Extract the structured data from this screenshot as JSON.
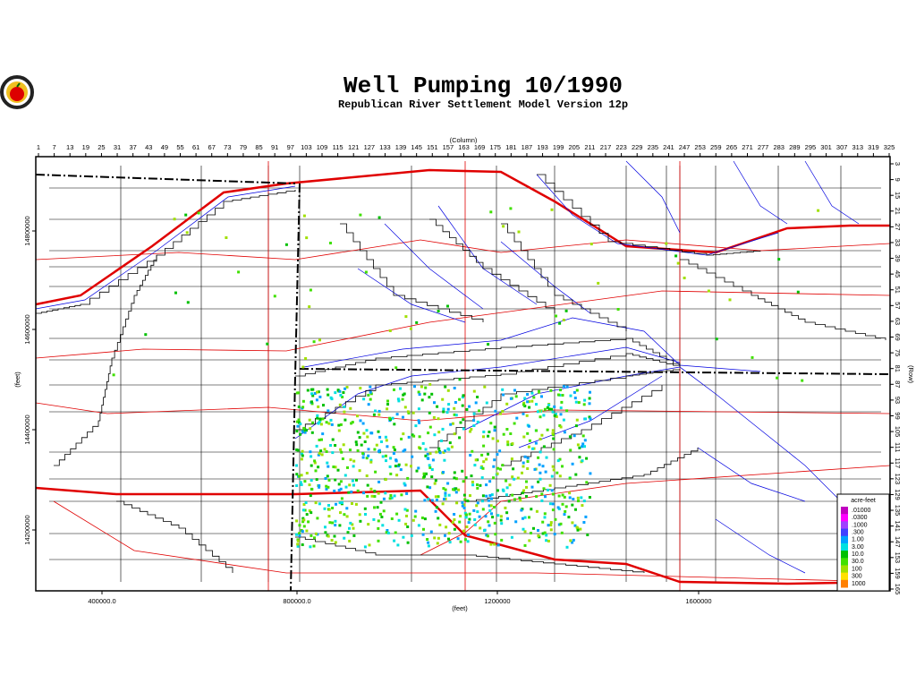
{
  "title": "Well Pumping 10/1990",
  "subtitle": "Republican River Settlement Model Version 12p",
  "column_axis": {
    "label": "(Column)",
    "ticks": [
      "1",
      "7",
      "13",
      "19",
      "25",
      "31",
      "37",
      "43",
      "49",
      "55",
      "61",
      "67",
      "73",
      "79",
      "85",
      "91",
      "97",
      "103",
      "109",
      "115",
      "121",
      "127",
      "133",
      "139",
      "145",
      "151",
      "157",
      "163",
      "169",
      "175",
      "181",
      "187",
      "193",
      "199",
      "205",
      "211",
      "217",
      "223",
      "229",
      "235",
      "241",
      "247",
      "253",
      "259",
      "265",
      "271",
      "277",
      "283",
      "289",
      "295",
      "301",
      "307",
      "313",
      "319",
      "325"
    ]
  },
  "row_axis": {
    "label": "(Row)",
    "ticks": [
      "3",
      "9",
      "15",
      "21",
      "27",
      "33",
      "39",
      "45",
      "51",
      "57",
      "63",
      "69",
      "75",
      "81",
      "87",
      "93",
      "99",
      "105",
      "111",
      "117",
      "123",
      "129",
      "135",
      "141",
      "147",
      "153",
      "159",
      "165"
    ]
  },
  "x_feet_axis": {
    "label": "(feet)",
    "ticks": [
      "400000.0",
      "800000.0",
      "1200000",
      "1600000"
    ]
  },
  "y_feet_axis": {
    "label": "(feet)",
    "ticks": [
      "14800000",
      "14600000",
      "14400000",
      "14200000"
    ]
  },
  "legend": {
    "title": "acre-feet",
    "entries": [
      {
        "label": ".01000",
        "color": "#c000c0"
      },
      {
        "label": ".0300",
        "color": "#ff00ff"
      },
      {
        "label": ".1000",
        "color": "#a040ff"
      },
      {
        "label": ".300",
        "color": "#4040ff"
      },
      {
        "label": "1.00",
        "color": "#00a0ff"
      },
      {
        "label": "3.00",
        "color": "#00e0e0"
      },
      {
        "label": "10.0",
        "color": "#00c000"
      },
      {
        "label": "30.0",
        "color": "#40e000"
      },
      {
        "label": "100",
        "color": "#a0e000"
      },
      {
        "label": "300",
        "color": "#ffe000"
      },
      {
        "label": "1000",
        "color": "#ff8000"
      }
    ]
  }
}
